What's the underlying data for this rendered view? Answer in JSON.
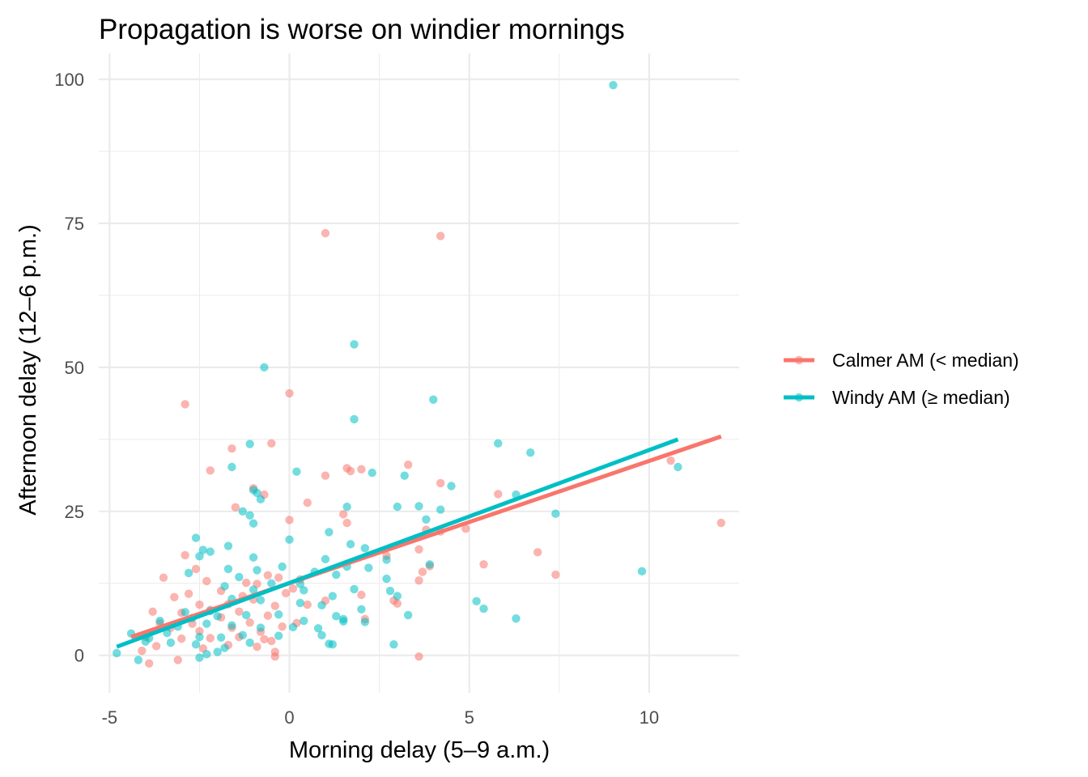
{
  "chart_data": {
    "type": "scatter",
    "title": "Propagation is worse on windier mornings",
    "xlabel": "Morning delay (5–9 a.m.)",
    "ylabel": "Afternoon delay (12–6 p.m.)",
    "xlim": [
      -5.3,
      12.5
    ],
    "ylim": [
      -6.5,
      104.5
    ],
    "x_ticks": [
      -5,
      0,
      5,
      10
    ],
    "x_tick_labels": [
      "-5",
      "0",
      "5",
      "10"
    ],
    "y_ticks": [
      0,
      25,
      50,
      75,
      100
    ],
    "y_tick_labels": [
      "0",
      "25",
      "50",
      "75",
      "100"
    ],
    "grid": true,
    "legend_position": "right",
    "series": [
      {
        "name": "Calmer AM (< median)",
        "color": "#F8766D",
        "trend": {
          "x": [
            -4.4,
            12.0
          ],
          "y": [
            3.2,
            38.0
          ]
        },
        "points": [
          [
            1.0,
            73.3
          ],
          [
            4.2,
            72.8
          ],
          [
            0.0,
            45.5
          ],
          [
            -2.9,
            43.6
          ],
          [
            -0.5,
            36.8
          ],
          [
            -1.6,
            35.9
          ],
          [
            3.3,
            33.1
          ],
          [
            1.6,
            32.5
          ],
          [
            -2.2,
            32.1
          ],
          [
            2.0,
            32.3
          ],
          [
            1.7,
            32.0
          ],
          [
            1.0,
            31.2
          ],
          [
            4.2,
            29.9
          ],
          [
            -1.0,
            29.0
          ],
          [
            -0.7,
            27.9
          ],
          [
            5.8,
            28.0
          ],
          [
            0.5,
            26.5
          ],
          [
            -1.5,
            25.7
          ],
          [
            1.5,
            24.5
          ],
          [
            0.0,
            23.5
          ],
          [
            1.6,
            23.0
          ],
          [
            12.0,
            23.0
          ],
          [
            10.6,
            33.8
          ],
          [
            4.9,
            22.0
          ],
          [
            3.8,
            21.8
          ],
          [
            4.2,
            21.5
          ],
          [
            5.4,
            15.8
          ],
          [
            7.4,
            14.0
          ],
          [
            6.9,
            17.9
          ],
          [
            3.6,
            18.4
          ],
          [
            3.9,
            15.5
          ],
          [
            3.7,
            14.5
          ],
          [
            3.6,
            13.0
          ],
          [
            2.7,
            17.3
          ],
          [
            2.9,
            9.5
          ],
          [
            3.0,
            9.0
          ],
          [
            2.0,
            10.5
          ],
          [
            1.0,
            9.5
          ],
          [
            0.5,
            8.8
          ],
          [
            -2.9,
            17.4
          ],
          [
            -3.5,
            13.5
          ],
          [
            -2.6,
            15.0
          ],
          [
            -2.3,
            12.9
          ],
          [
            -1.9,
            11.2
          ],
          [
            -1.2,
            12.6
          ],
          [
            -0.6,
            13.9
          ],
          [
            -0.3,
            13.5
          ],
          [
            0.3,
            13.2
          ],
          [
            -0.1,
            10.8
          ],
          [
            -2.8,
            10.7
          ],
          [
            -3.2,
            10.1
          ],
          [
            -2.5,
            8.8
          ],
          [
            -1.7,
            8.9
          ],
          [
            -1.0,
            9.7
          ],
          [
            -0.4,
            8.6
          ],
          [
            -3.8,
            7.6
          ],
          [
            -3.0,
            7.4
          ],
          [
            -2.2,
            7.9
          ],
          [
            -1.4,
            7.6
          ],
          [
            -0.6,
            6.9
          ],
          [
            -3.6,
            5.6
          ],
          [
            -2.7,
            5.5
          ],
          [
            -1.9,
            6.6
          ],
          [
            -1.1,
            5.7
          ],
          [
            -0.2,
            5.0
          ],
          [
            -3.3,
            4.8
          ],
          [
            -2.5,
            4.2
          ],
          [
            -1.6,
            4.8
          ],
          [
            -0.8,
            4.1
          ],
          [
            0.2,
            5.6
          ],
          [
            -4.0,
            3.2
          ],
          [
            -3.0,
            2.9
          ],
          [
            -2.2,
            3.0
          ],
          [
            -1.4,
            3.2
          ],
          [
            -0.5,
            2.5
          ],
          [
            -3.7,
            1.6
          ],
          [
            -2.4,
            1.2
          ],
          [
            -1.7,
            1.8
          ],
          [
            -0.9,
            1.5
          ],
          [
            -0.4,
            0.6
          ],
          [
            -4.1,
            0.8
          ],
          [
            -3.9,
            -1.4
          ],
          [
            -3.1,
            -0.8
          ],
          [
            -0.4,
            -0.2
          ],
          [
            3.6,
            -0.2
          ],
          [
            -0.7,
            2.8
          ],
          [
            -1.3,
            10.3
          ],
          [
            -0.9,
            12.4
          ],
          [
            0.1,
            11.6
          ],
          [
            2.1,
            6.3
          ]
        ]
      },
      {
        "name": "Windy AM (≥ median)",
        "color": "#00BFC4",
        "trend": {
          "x": [
            -4.8,
            10.8
          ],
          "y": [
            1.5,
            37.5
          ]
        },
        "points": [
          [
            9.0,
            99.0
          ],
          [
            1.8,
            54.0
          ],
          [
            -0.7,
            50.0
          ],
          [
            1.8,
            41.0
          ],
          [
            4.0,
            44.4
          ],
          [
            5.8,
            36.8
          ],
          [
            -1.1,
            36.7
          ],
          [
            -1.6,
            32.7
          ],
          [
            6.7,
            35.2
          ],
          [
            0.2,
            31.9
          ],
          [
            2.3,
            31.7
          ],
          [
            3.2,
            31.2
          ],
          [
            4.5,
            29.4
          ],
          [
            -1.0,
            28.7
          ],
          [
            -0.9,
            28.2
          ],
          [
            10.8,
            32.7
          ],
          [
            -0.8,
            27.1
          ],
          [
            6.3,
            27.9
          ],
          [
            1.6,
            25.8
          ],
          [
            3.0,
            25.8
          ],
          [
            3.6,
            25.9
          ],
          [
            4.2,
            25.3
          ],
          [
            -1.1,
            24.3
          ],
          [
            -1.3,
            25.0
          ],
          [
            -1.0,
            22.9
          ],
          [
            3.8,
            23.6
          ],
          [
            7.4,
            24.6
          ],
          [
            1.1,
            21.4
          ],
          [
            -2.6,
            20.4
          ],
          [
            -1.7,
            19.0
          ],
          [
            0.0,
            20.1
          ],
          [
            1.7,
            19.3
          ],
          [
            2.1,
            18.6
          ],
          [
            -2.2,
            18.0
          ],
          [
            -2.4,
            18.3
          ],
          [
            -2.5,
            17.2
          ],
          [
            -1.0,
            17.0
          ],
          [
            1.0,
            16.7
          ],
          [
            1.6,
            15.4
          ],
          [
            2.7,
            16.6
          ],
          [
            3.9,
            15.8
          ],
          [
            9.8,
            14.6
          ],
          [
            -1.7,
            15.0
          ],
          [
            -0.9,
            14.8
          ],
          [
            -0.2,
            15.4
          ],
          [
            0.7,
            14.5
          ],
          [
            2.2,
            15.2
          ],
          [
            -2.8,
            14.3
          ],
          [
            -1.4,
            13.6
          ],
          [
            -0.5,
            12.5
          ],
          [
            0.3,
            12.4
          ],
          [
            1.3,
            14.0
          ],
          [
            2.7,
            13.3
          ],
          [
            -1.8,
            12.0
          ],
          [
            -1.0,
            11.4
          ],
          [
            0.4,
            11.3
          ],
          [
            1.2,
            10.3
          ],
          [
            1.8,
            11.5
          ],
          [
            2.8,
            11.2
          ],
          [
            -2.9,
            7.5
          ],
          [
            -2.2,
            7.7
          ],
          [
            -1.6,
            9.8
          ],
          [
            -0.8,
            9.6
          ],
          [
            0.3,
            9.1
          ],
          [
            0.9,
            8.7
          ],
          [
            2.0,
            8.0
          ],
          [
            3.0,
            10.3
          ],
          [
            5.2,
            9.4
          ],
          [
            5.4,
            8.1
          ],
          [
            -3.6,
            6.0
          ],
          [
            -2.7,
            6.5
          ],
          [
            -2.0,
            6.8
          ],
          [
            -1.2,
            7.0
          ],
          [
            -0.3,
            7.1
          ],
          [
            0.4,
            6.0
          ],
          [
            1.3,
            6.8
          ],
          [
            1.5,
            6.3
          ],
          [
            3.3,
            7.0
          ],
          [
            6.3,
            6.4
          ],
          [
            -3.1,
            5.0
          ],
          [
            -2.3,
            5.5
          ],
          [
            -1.6,
            5.2
          ],
          [
            -0.8,
            4.8
          ],
          [
            0.1,
            4.9
          ],
          [
            0.8,
            4.7
          ],
          [
            1.5,
            5.9
          ],
          [
            2.1,
            5.8
          ],
          [
            -4.4,
            3.8
          ],
          [
            -3.4,
            3.9
          ],
          [
            -2.5,
            3.2
          ],
          [
            -1.9,
            3.1
          ],
          [
            -1.3,
            3.5
          ],
          [
            -0.3,
            3.4
          ],
          [
            0.9,
            3.5
          ],
          [
            -4.0,
            2.4
          ],
          [
            -3.3,
            2.2
          ],
          [
            -2.6,
            1.9
          ],
          [
            -1.8,
            1.3
          ],
          [
            -1.1,
            2.2
          ],
          [
            -4.8,
            0.4
          ],
          [
            -4.2,
            -0.8
          ],
          [
            -2.5,
            -0.4
          ],
          [
            -2.0,
            0.6
          ],
          [
            -2.3,
            0.2
          ],
          [
            1.1,
            2.0
          ],
          [
            1.2,
            1.9
          ],
          [
            2.9,
            1.9
          ],
          [
            -3.9,
            3.0
          ]
        ]
      }
    ]
  }
}
